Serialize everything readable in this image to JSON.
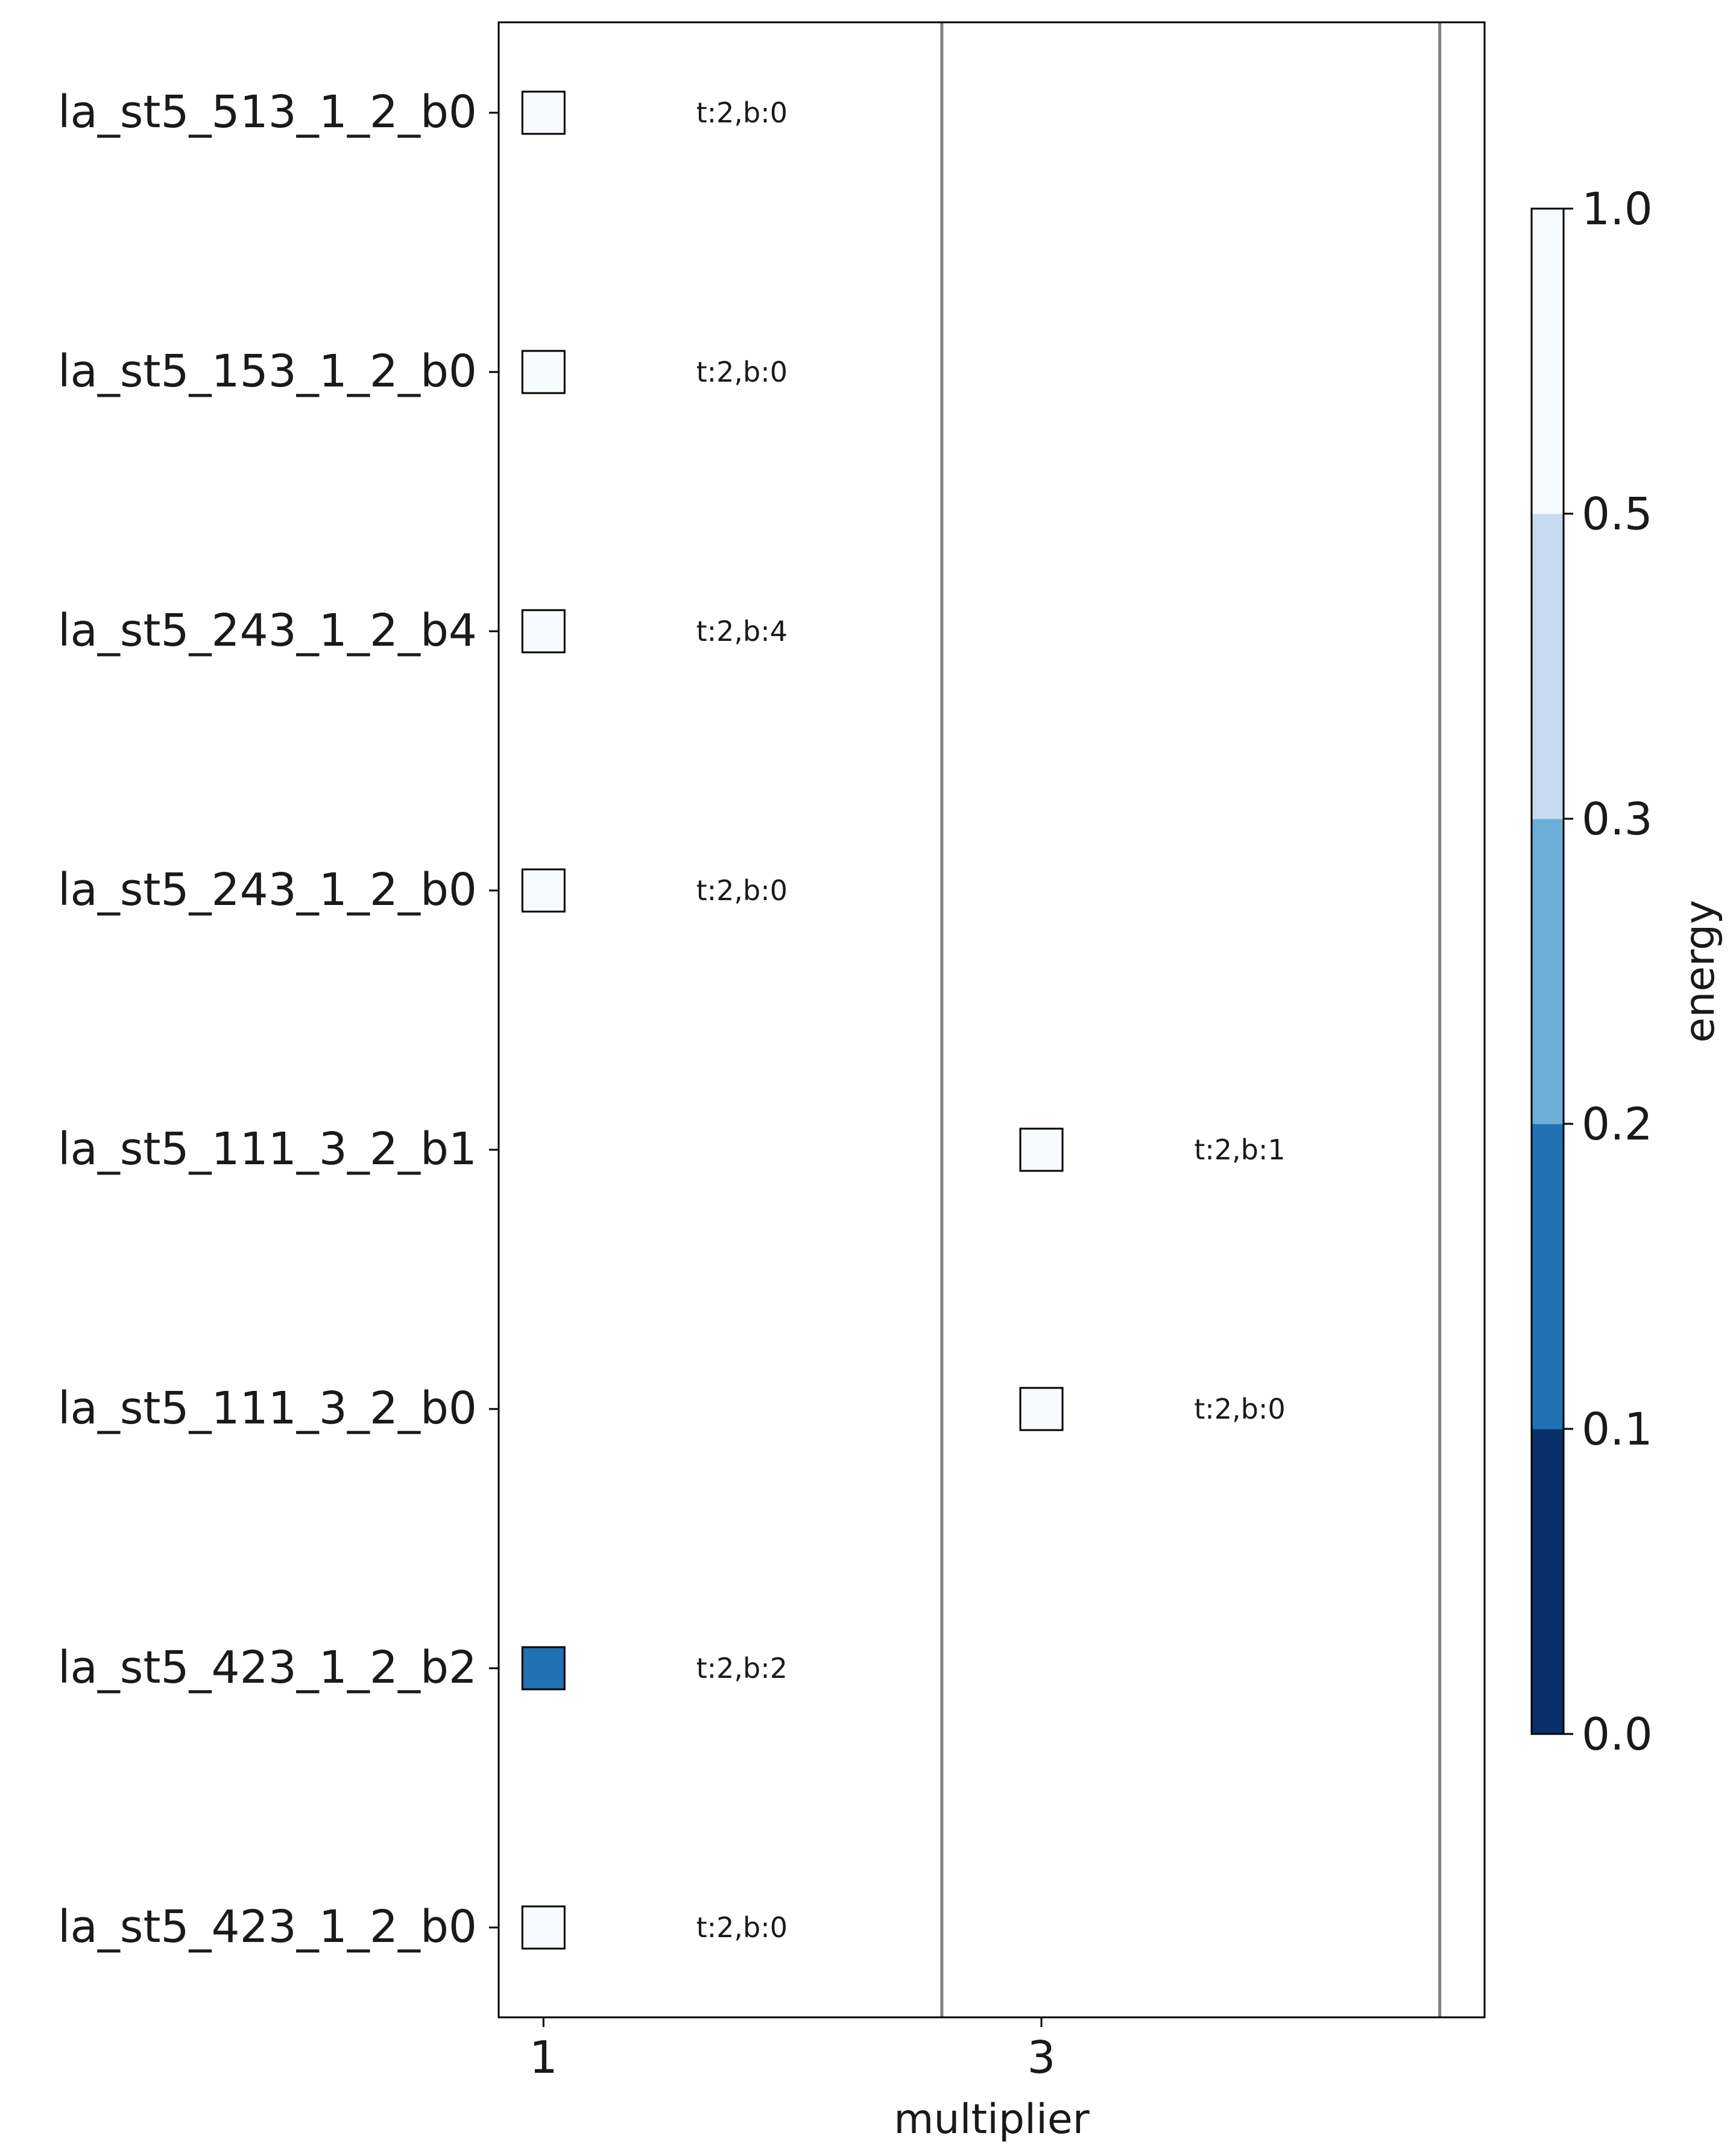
{
  "chart_data": {
    "type": "scatter",
    "xlabel": "multiplier",
    "x_ticks": [
      "1",
      "3"
    ],
    "categories": [
      "la_st5_513_1_2_b0",
      "la_st5_153_1_2_b0",
      "la_st5_243_1_2_b4",
      "la_st5_243_1_2_b0",
      "la_st5_111_3_2_b1",
      "la_st5_111_3_2_b0",
      "la_st5_423_1_2_b2",
      "la_st5_423_1_2_b0"
    ],
    "points": [
      {
        "category": "la_st5_513_1_2_b0",
        "multiplier": 1,
        "energy": 0.98,
        "label": "t:2,b:0"
      },
      {
        "category": "la_st5_153_1_2_b0",
        "multiplier": 1,
        "energy": 0.98,
        "label": "t:2,b:0"
      },
      {
        "category": "la_st5_243_1_2_b4",
        "multiplier": 1,
        "energy": 0.98,
        "label": "t:2,b:4"
      },
      {
        "category": "la_st5_243_1_2_b0",
        "multiplier": 1,
        "energy": 0.98,
        "label": "t:2,b:0"
      },
      {
        "category": "la_st5_111_3_2_b1",
        "multiplier": 3,
        "energy": 0.98,
        "label": "t:2,b:1"
      },
      {
        "category": "la_st5_111_3_2_b0",
        "multiplier": 3,
        "energy": 0.98,
        "label": "t:2,b:0"
      },
      {
        "category": "la_st5_423_1_2_b2",
        "multiplier": 1,
        "energy": 0.15,
        "label": "t:2,b:2"
      },
      {
        "category": "la_st5_423_1_2_b0",
        "multiplier": 1,
        "energy": 0.98,
        "label": "t:2,b:0"
      }
    ],
    "separators_at_multiplier": [
      2.6,
      4.6
    ],
    "xlim": [
      0.82,
      4.78
    ],
    "colorbar": {
      "label": "energy",
      "ticks": [
        "0.0",
        "0.1",
        "0.2",
        "0.3",
        "0.5",
        "1.0"
      ],
      "bounds": [
        0.0,
        0.1,
        0.2,
        0.3,
        0.5,
        1.0
      ],
      "colors": [
        "#08306b",
        "#2171b5",
        "#6baed6",
        "#c6dbef",
        "#f7fbff"
      ]
    },
    "colors": {
      "separator": "#808080",
      "frame": "#000000"
    }
  }
}
